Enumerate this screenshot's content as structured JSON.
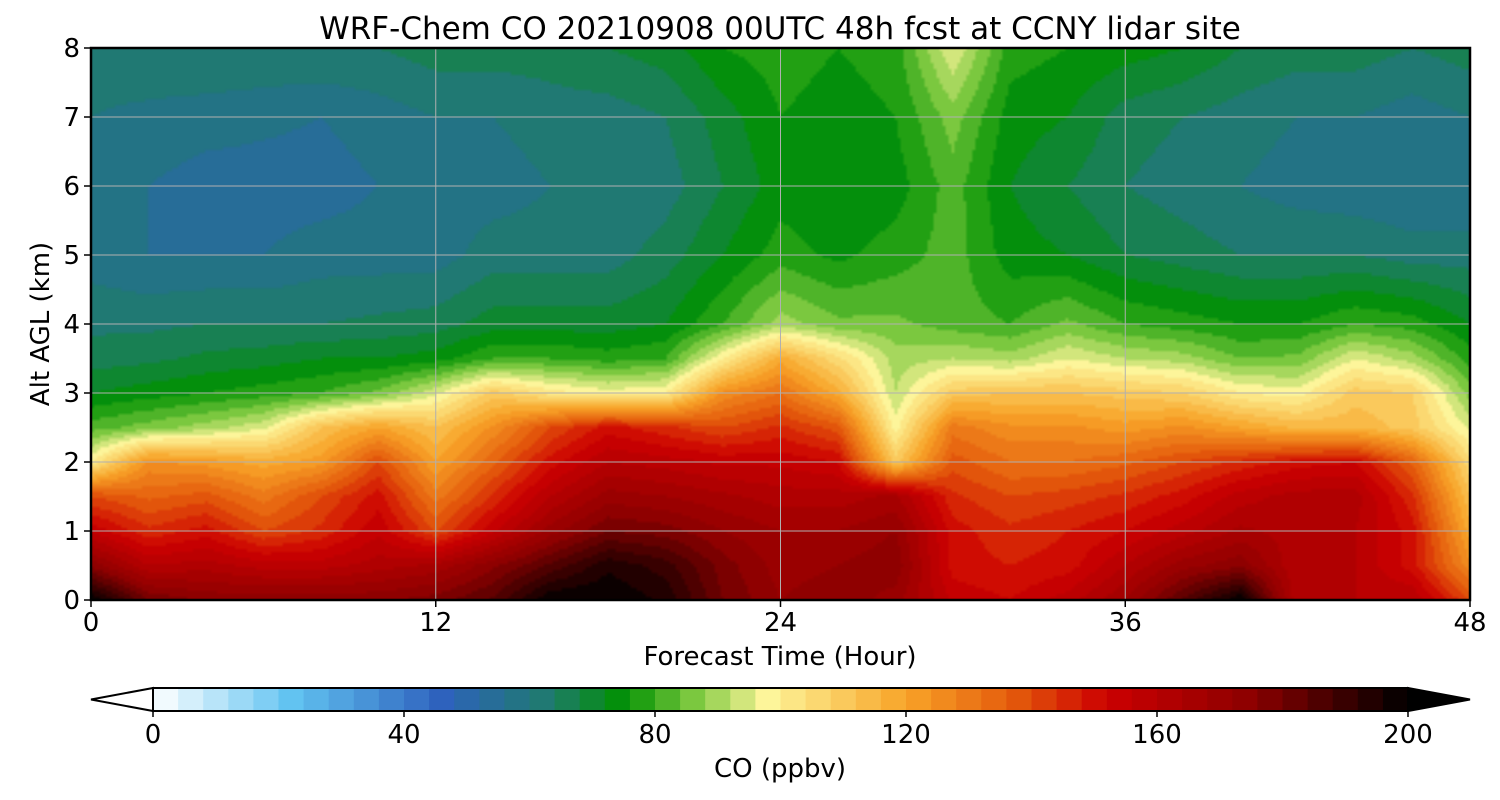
{
  "chart_data": {
    "type": "heatmap",
    "subtype": "filled-contour",
    "title": "WRF-Chem CO  20210908 00UTC 48h fcst at CCNY lidar site",
    "xlabel": "Forecast Time (Hour)",
    "ylabel": "Alt AGL (km)",
    "xlim": [
      0,
      48
    ],
    "ylim": [
      0,
      8
    ],
    "xticks": [
      0,
      12,
      24,
      36,
      48
    ],
    "yticks": [
      0,
      1,
      2,
      3,
      4,
      5,
      6,
      7,
      8
    ],
    "grid": true,
    "x": [
      0,
      2,
      4,
      6,
      8,
      10,
      12,
      14,
      16,
      18,
      20,
      22,
      24,
      26,
      28,
      30,
      32,
      34,
      36,
      38,
      40,
      42,
      44,
      46,
      48
    ],
    "y": [
      0,
      0.5,
      1,
      1.5,
      2,
      2.5,
      3,
      3.5,
      4,
      5,
      6,
      7,
      8
    ],
    "values": [
      [
        200,
        180,
        175,
        175,
        175,
        175,
        178,
        185,
        200,
        200,
        195,
        180,
        172,
        175,
        170,
        155,
        152,
        158,
        168,
        185,
        200,
        160,
        160,
        160,
        140
      ],
      [
        175,
        160,
        162,
        158,
        158,
        162,
        165,
        175,
        185,
        195,
        190,
        178,
        170,
        172,
        175,
        150,
        148,
        150,
        160,
        170,
        175,
        160,
        160,
        150,
        125
      ],
      [
        155,
        145,
        150,
        140,
        145,
        155,
        140,
        155,
        170,
        180,
        178,
        172,
        168,
        168,
        172,
        150,
        145,
        148,
        152,
        158,
        165,
        162,
        160,
        150,
        118
      ],
      [
        140,
        135,
        138,
        130,
        140,
        150,
        130,
        145,
        160,
        170,
        168,
        165,
        162,
        162,
        165,
        145,
        140,
        142,
        145,
        150,
        158,
        162,
        162,
        145,
        112
      ],
      [
        100,
        125,
        122,
        118,
        122,
        140,
        120,
        135,
        150,
        160,
        158,
        155,
        155,
        152,
        110,
        138,
        132,
        132,
        135,
        140,
        145,
        150,
        152,
        135,
        105
      ],
      [
        82,
        86,
        90,
        95,
        112,
        120,
        112,
        125,
        140,
        150,
        145,
        140,
        145,
        138,
        98,
        130,
        125,
        125,
        122,
        125,
        120,
        115,
        115,
        110,
        95
      ],
      [
        72,
        74,
        76,
        78,
        80,
        85,
        95,
        110,
        102,
        98,
        100,
        125,
        132,
        118,
        92,
        110,
        112,
        112,
        110,
        108,
        100,
        98,
        110,
        108,
        86
      ],
      [
        66,
        67,
        69,
        70,
        72,
        72,
        74,
        80,
        80,
        78,
        80,
        100,
        118,
        105,
        90,
        92,
        90,
        96,
        92,
        90,
        84,
        85,
        96,
        90,
        78
      ],
      [
        63,
        63,
        64,
        64,
        64,
        65,
        66,
        70,
        70,
        70,
        72,
        80,
        90,
        85,
        85,
        82,
        80,
        85,
        80,
        78,
        76,
        76,
        80,
        78,
        72
      ],
      [
        58,
        56,
        56,
        56,
        58,
        58,
        58,
        62,
        62,
        62,
        66,
        72,
        78,
        75,
        78,
        82,
        74,
        72,
        68,
        66,
        64,
        64,
        64,
        62,
        62
      ],
      [
        58,
        56,
        54,
        54,
        54,
        56,
        58,
        58,
        60,
        60,
        62,
        68,
        74,
        72,
        74,
        82,
        72,
        68,
        64,
        62,
        60,
        58,
        57,
        56,
        56
      ],
      [
        60,
        59,
        58,
        57,
        56,
        58,
        60,
        60,
        62,
        62,
        64,
        70,
        76,
        74,
        76,
        86,
        74,
        72,
        66,
        64,
        62,
        60,
        60,
        58,
        60
      ],
      [
        62,
        63,
        64,
        64,
        64,
        64,
        66,
        66,
        66,
        68,
        70,
        76,
        78,
        76,
        78,
        96,
        78,
        76,
        74,
        72,
        68,
        66,
        66,
        64,
        66
      ]
    ],
    "colorbar": {
      "label": "CO  (ppbv)",
      "min": 0,
      "max": 200,
      "ticks": [
        0,
        40,
        80,
        120,
        160,
        200
      ],
      "extend": "both",
      "colors": [
        "#ffffff",
        "#62c3f1",
        "#2e62bd",
        "#1f7a6e",
        "#019103",
        "#7bc83f",
        "#fdf59a",
        "#f8a428",
        "#e45b0c",
        "#cc0001",
        "#8c0000",
        "#000000"
      ],
      "color_stops": [
        0,
        22,
        46,
        63,
        75,
        86,
        98,
        120,
        137,
        152,
        175,
        200
      ]
    }
  }
}
